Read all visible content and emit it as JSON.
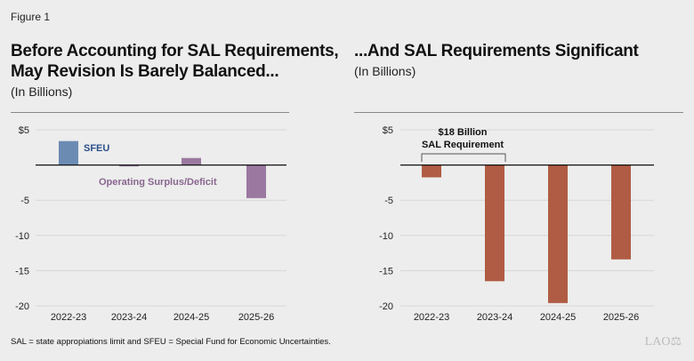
{
  "figure_label": "Figure 1",
  "footnote": "SAL = state appropiations limit and SFEU = Special Fund for Economic Uncertainties.",
  "logo": "LAO",
  "chart_data": [
    {
      "type": "bar",
      "title": "Before Accounting for SAL Requirements, May Revision Is Barely Balanced...",
      "subtitle": "(In Billions)",
      "categories": [
        "2022-23",
        "2023-24",
        "2024-25",
        "2025-26"
      ],
      "ylim": [
        -20,
        5
      ],
      "yticks": [
        5,
        0,
        -5,
        -10,
        -15,
        -20
      ],
      "ytick_labels": [
        "$5",
        "",
        "-5",
        "-10",
        "-15",
        "-20"
      ],
      "grid": true,
      "series": [
        {
          "name": "SFEU",
          "color": "#6b8bb3",
          "label_color": "#2d4f8a",
          "values": [
            3.4,
            null,
            null,
            null
          ]
        },
        {
          "name": "Operating Surplus/Deficit",
          "color": "#9b78a0",
          "label_color": "#8a6690",
          "values": [
            null,
            -0.2,
            1.0,
            -4.7
          ]
        }
      ]
    },
    {
      "type": "bar",
      "title": "...And SAL Requirements Significant",
      "subtitle": "(In Billions)",
      "categories": [
        "2022-23",
        "2023-24",
        "2024-25",
        "2025-26"
      ],
      "ylim": [
        -20,
        5
      ],
      "yticks": [
        5,
        0,
        -5,
        -10,
        -15,
        -20
      ],
      "ytick_labels": [
        "$5",
        "",
        "-5",
        "-10",
        "-15",
        "-20"
      ],
      "grid": true,
      "annotation": [
        "$18 Billion",
        "SAL Requirement"
      ],
      "series": [
        {
          "color": "#b05c44",
          "values": [
            -1.75,
            -16.5,
            -19.6,
            -13.4
          ]
        }
      ]
    }
  ]
}
